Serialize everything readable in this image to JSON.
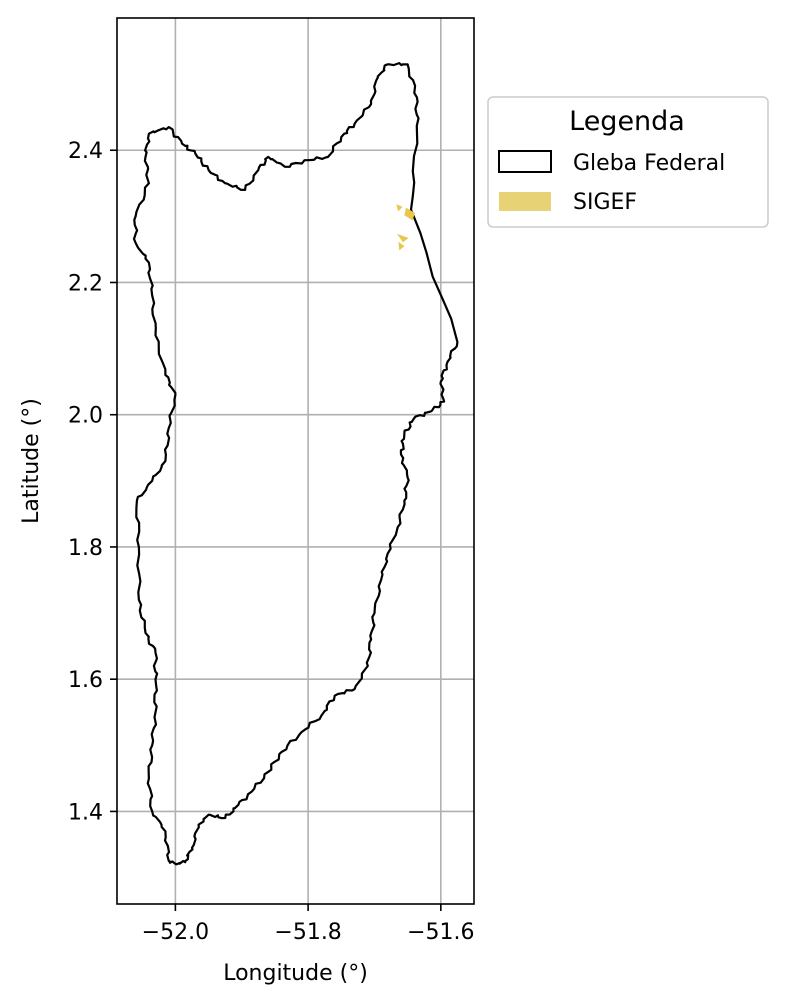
{
  "chart_data": {
    "type": "map",
    "xlabel": "Longitude (°)",
    "ylabel": "Latitude (°)",
    "xlim": [
      -52.088,
      -51.55
    ],
    "ylim": [
      1.26,
      2.6
    ],
    "x_ticks": [
      -52.0,
      -51.8,
      -51.6
    ],
    "x_tick_labels": [
      "−52.0",
      "−51.8",
      "−51.6"
    ],
    "y_ticks": [
      1.4,
      1.6,
      1.8,
      2.0,
      2.2,
      2.4
    ],
    "y_tick_labels": [
      "1.4",
      "1.6",
      "1.8",
      "2.0",
      "2.2",
      "2.4"
    ],
    "grid": true,
    "legend": {
      "title": "Legenda",
      "placement": "outside-right-top",
      "entries": [
        {
          "label": "Gleba Federal",
          "style": "outline",
          "color": "#000000"
        },
        {
          "label": "SIGEF",
          "style": "fill",
          "color": "#e8d276"
        }
      ]
    },
    "layers": [
      {
        "name": "Gleba Federal",
        "geometry": "polygon",
        "stroke": "#000000",
        "fill": "none",
        "coordinates": [
          [
            -51.998,
            1.32
          ],
          [
            -51.985,
            1.325
          ],
          [
            -51.975,
            1.345
          ],
          [
            -51.965,
            1.38
          ],
          [
            -51.95,
            1.395
          ],
          [
            -51.925,
            1.39
          ],
          [
            -51.905,
            1.41
          ],
          [
            -51.885,
            1.43
          ],
          [
            -51.86,
            1.46
          ],
          [
            -51.84,
            1.49
          ],
          [
            -51.81,
            1.52
          ],
          [
            -51.78,
            1.545
          ],
          [
            -51.76,
            1.575
          ],
          [
            -51.73,
            1.585
          ],
          [
            -51.71,
            1.62
          ],
          [
            -51.705,
            1.66
          ],
          [
            -51.7,
            1.7
          ],
          [
            -51.69,
            1.75
          ],
          [
            -51.68,
            1.79
          ],
          [
            -51.665,
            1.83
          ],
          [
            -51.655,
            1.87
          ],
          [
            -51.65,
            1.905
          ],
          [
            -51.66,
            1.94
          ],
          [
            -51.655,
            1.97
          ],
          [
            -51.64,
            1.995
          ],
          [
            -51.615,
            2.005
          ],
          [
            -51.595,
            2.02
          ],
          [
            -51.6,
            2.05
          ],
          [
            -51.59,
            2.08
          ],
          [
            -51.575,
            2.11
          ],
          [
            -51.645,
            2.31
          ],
          [
            -51.636,
            2.43
          ],
          [
            -51.636,
            2.48
          ],
          [
            -51.65,
            2.53
          ],
          [
            -51.68,
            2.53
          ],
          [
            -51.695,
            2.51
          ],
          [
            -51.705,
            2.47
          ],
          [
            -51.73,
            2.44
          ],
          [
            -51.75,
            2.42
          ],
          [
            -51.77,
            2.39
          ],
          [
            -51.8,
            2.385
          ],
          [
            -51.835,
            2.375
          ],
          [
            -51.86,
            2.39
          ],
          [
            -51.875,
            2.37
          ],
          [
            -51.895,
            2.34
          ],
          [
            -51.925,
            2.35
          ],
          [
            -51.95,
            2.37
          ],
          [
            -51.97,
            2.395
          ],
          [
            -51.99,
            2.41
          ],
          [
            -52.01,
            2.435
          ],
          [
            -52.04,
            2.425
          ],
          [
            -52.045,
            2.39
          ],
          [
            -52.04,
            2.35
          ],
          [
            -52.06,
            2.3
          ],
          [
            -52.06,
            2.26
          ],
          [
            -52.04,
            2.23
          ],
          [
            -52.035,
            2.18
          ],
          [
            -52.03,
            2.12
          ],
          [
            -52.015,
            2.06
          ],
          [
            -52.0,
            2.03
          ],
          [
            -52.01,
            1.98
          ],
          [
            -52.015,
            1.93
          ],
          [
            -52.035,
            1.9
          ],
          [
            -52.058,
            1.87
          ],
          [
            -52.055,
            1.8
          ],
          [
            -52.055,
            1.72
          ],
          [
            -52.045,
            1.67
          ],
          [
            -52.03,
            1.64
          ],
          [
            -52.03,
            1.6
          ],
          [
            -52.03,
            1.55
          ],
          [
            -52.035,
            1.5
          ],
          [
            -52.04,
            1.45
          ],
          [
            -52.035,
            1.4
          ],
          [
            -52.015,
            1.37
          ],
          [
            -52.01,
            1.325
          ]
        ]
      },
      {
        "name": "SIGEF",
        "geometry": "multipolygon",
        "fill": "#e8c84a",
        "polygons": [
          [
            [
              -51.652,
              2.312
            ],
            [
              -51.64,
              2.305
            ],
            [
              -51.643,
              2.295
            ],
            [
              -51.654,
              2.302
            ]
          ],
          [
            [
              -51.666,
              2.317
            ],
            [
              -51.659,
              2.314
            ],
            [
              -51.664,
              2.309
            ]
          ],
          [
            [
              -51.664,
              2.272
            ],
            [
              -51.65,
              2.267
            ],
            [
              -51.657,
              2.262
            ]
          ],
          [
            [
              -51.663,
              2.26
            ],
            [
              -51.656,
              2.255
            ],
            [
              -51.662,
              2.25
            ]
          ]
        ]
      }
    ]
  }
}
